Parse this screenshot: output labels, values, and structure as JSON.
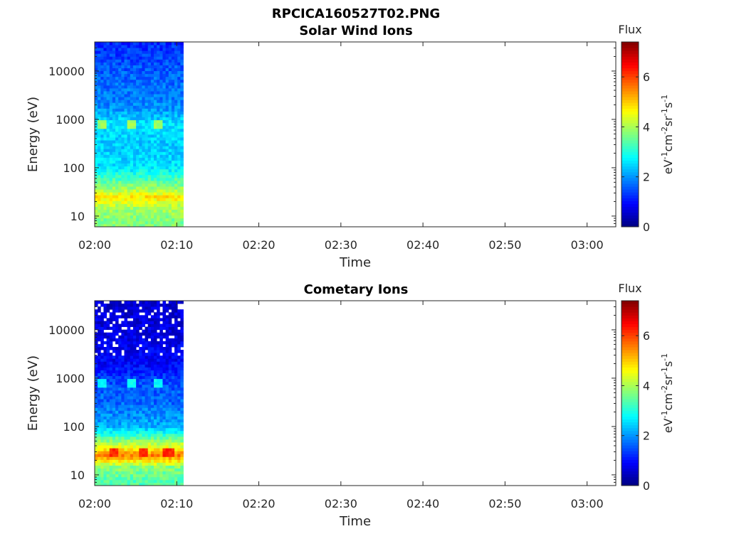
{
  "figure": {
    "title": "RPCICA160527T02.PNG"
  },
  "colors": {
    "colormap": "jet",
    "axis": "#262626",
    "background": "#ffffff"
  },
  "chart_data": [
    {
      "type": "heatmap",
      "title": "Solar Wind Ions",
      "xlabel": "Time",
      "ylabel": "Energy (eV)",
      "x_ticks": [
        "02:00",
        "02:10",
        "02:20",
        "02:30",
        "02:40",
        "02:50",
        "03:00"
      ],
      "x_range_minutes": [
        0,
        63.5
      ],
      "data_extent_minutes": [
        0,
        10.8
      ],
      "y_scale": "log",
      "y_ticks": [
        10,
        100,
        1000,
        10000
      ],
      "y_tick_labels": [
        "10",
        "100",
        "1000",
        "10000"
      ],
      "y_range": [
        6,
        40000
      ],
      "colorbar": {
        "title": "Flux",
        "label": "eV-1cm-2sr-1s-1",
        "ticks": [
          0,
          2,
          4,
          6
        ],
        "range": [
          0,
          7.4
        ]
      },
      "energy_profile": [
        {
          "energy": 8,
          "flux": 3.7
        },
        {
          "energy": 15,
          "flux": 4.0
        },
        {
          "energy": 25,
          "flux": 4.8
        },
        {
          "energy": 40,
          "flux": 3.8
        },
        {
          "energy": 100,
          "flux": 2.6
        },
        {
          "energy": 300,
          "flux": 2.4
        },
        {
          "energy": 800,
          "flux": 2.6
        },
        {
          "energy": 2000,
          "flux": 1.9
        },
        {
          "energy": 10000,
          "flux": 1.6
        },
        {
          "energy": 40000,
          "flux": 1.2
        }
      ],
      "highlights": [
        {
          "time_minutes": 1.0,
          "energy": 800,
          "flux": 3.9
        },
        {
          "time_minutes": 4.5,
          "energy": 800,
          "flux": 3.9
        },
        {
          "time_minutes": 7.9,
          "energy": 800,
          "flux": 3.9
        }
      ]
    },
    {
      "type": "heatmap",
      "title": "Cometary Ions",
      "xlabel": "Time",
      "ylabel": "Energy (eV)",
      "x_ticks": [
        "02:00",
        "02:10",
        "02:20",
        "02:30",
        "02:40",
        "02:50",
        "03:00"
      ],
      "x_range_minutes": [
        0,
        63.5
      ],
      "data_extent_minutes": [
        0,
        10.8
      ],
      "y_scale": "log",
      "y_ticks": [
        10,
        100,
        1000,
        10000
      ],
      "y_tick_labels": [
        "10",
        "100",
        "1000",
        "10000"
      ],
      "y_range": [
        6,
        40000
      ],
      "colorbar": {
        "title": "Flux",
        "label": "eV-1cm-2sr-1s-1",
        "ticks": [
          0,
          2,
          4,
          6
        ],
        "range": [
          0,
          7.4
        ]
      },
      "energy_profile": [
        {
          "energy": 8,
          "flux": 3.4
        },
        {
          "energy": 15,
          "flux": 3.8
        },
        {
          "energy": 25,
          "flux": 5.6
        },
        {
          "energy": 40,
          "flux": 4.3
        },
        {
          "energy": 100,
          "flux": 2.2
        },
        {
          "energy": 300,
          "flux": 1.7
        },
        {
          "energy": 800,
          "flux": 1.5
        },
        {
          "energy": 2000,
          "flux": 0.9
        },
        {
          "energy": 10000,
          "flux": 0.7
        },
        {
          "energy": 40000,
          "flux": 0.6
        }
      ],
      "highlights": [
        {
          "time_minutes": 1.0,
          "energy": 800,
          "flux": 2.8
        },
        {
          "time_minutes": 4.5,
          "energy": 800,
          "flux": 2.8
        },
        {
          "time_minutes": 7.9,
          "energy": 800,
          "flux": 2.8
        },
        {
          "time_minutes": 2.5,
          "energy": 28,
          "flux": 6.2
        },
        {
          "time_minutes": 6.0,
          "energy": 28,
          "flux": 6.2
        },
        {
          "time_minutes": 9.0,
          "energy": 28,
          "flux": 6.2
        }
      ],
      "empty_above_energy": 3000
    }
  ]
}
